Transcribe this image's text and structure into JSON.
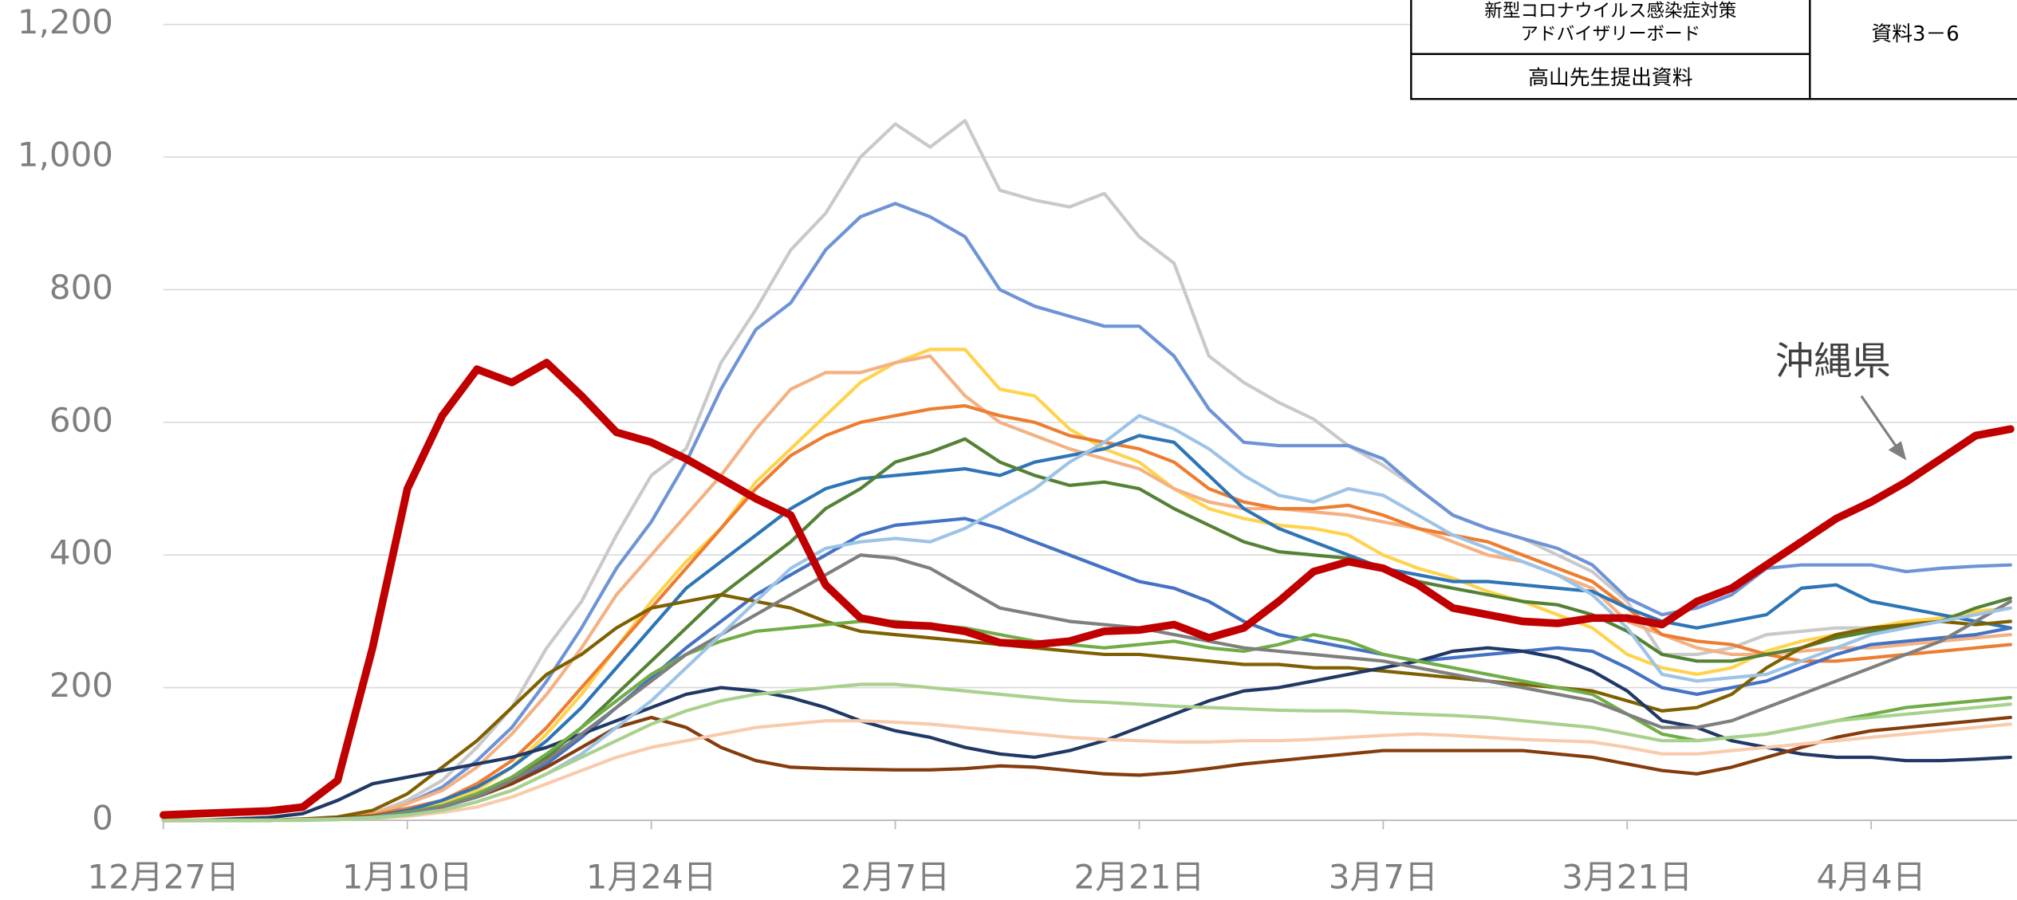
{
  "chart_data": {
    "type": "line",
    "categories": [
      "12月27日",
      null,
      null,
      null,
      null,
      null,
      null,
      "1月10日",
      null,
      null,
      null,
      null,
      null,
      null,
      "1月24日",
      null,
      null,
      null,
      null,
      null,
      null,
      "2月7日",
      null,
      null,
      null,
      null,
      null,
      null,
      "2月21日",
      null,
      null,
      null,
      null,
      null,
      null,
      "3月7日",
      null,
      null,
      null,
      null,
      null,
      null,
      "3月21日",
      null,
      null,
      null,
      null,
      null,
      null,
      "4月4日",
      null,
      null,
      null,
      null
    ],
    "ylim": [
      0,
      1200
    ],
    "yticks": [
      0,
      200,
      400,
      600,
      800,
      {
        "value": 1000,
        "label": "1,000"
      },
      {
        "value": 1200,
        "label": "1,200"
      }
    ],
    "grid": true,
    "annotation": {
      "text": "沖縄県",
      "series": 16
    },
    "series": [
      {
        "color": "#c9c9c9",
        "values": [
          0,
          0,
          0,
          0,
          2,
          5,
          10,
          30,
          60,
          110,
          170,
          260,
          330,
          430,
          520,
          560,
          690,
          770,
          860,
          915,
          1000,
          1050,
          1015,
          1055,
          950,
          935,
          925,
          945,
          880,
          840,
          700,
          660,
          630,
          605,
          565,
          535,
          500,
          460,
          440,
          425,
          400,
          375,
          330,
          250,
          250,
          260,
          280,
          285,
          290,
          290,
          295,
          300,
          310,
          320
        ]
      },
      {
        "color": "#6e93d6",
        "values": [
          0,
          0,
          0,
          0,
          1,
          3,
          8,
          25,
          50,
          90,
          140,
          210,
          290,
          380,
          450,
          540,
          650,
          740,
          780,
          860,
          910,
          930,
          910,
          880,
          800,
          775,
          760,
          745,
          745,
          700,
          620,
          570,
          565,
          565,
          565,
          545,
          500,
          460,
          440,
          425,
          410,
          385,
          335,
          310,
          320,
          340,
          380,
          385,
          385,
          385,
          375,
          380,
          383,
          385
        ]
      },
      {
        "color": "#ffd34d",
        "values": [
          0,
          0,
          0,
          0,
          0,
          2,
          5,
          12,
          25,
          45,
          80,
          130,
          190,
          260,
          330,
          390,
          440,
          510,
          560,
          610,
          660,
          690,
          710,
          710,
          650,
          640,
          590,
          560,
          540,
          500,
          470,
          455,
          445,
          440,
          430,
          400,
          380,
          365,
          345,
          330,
          310,
          290,
          250,
          230,
          220,
          230,
          255,
          270,
          280,
          290,
          300,
          305,
          315,
          320
        ]
      },
      {
        "color": "#f4b183",
        "values": [
          0,
          0,
          0,
          0,
          1,
          4,
          10,
          25,
          45,
          80,
          130,
          190,
          260,
          340,
          400,
          460,
          520,
          590,
          650,
          675,
          675,
          690,
          700,
          640,
          600,
          580,
          560,
          545,
          530,
          500,
          480,
          470,
          470,
          465,
          460,
          450,
          440,
          420,
          400,
          390,
          370,
          350,
          300,
          280,
          260,
          250,
          250,
          255,
          260,
          260,
          265,
          270,
          275,
          280
        ]
      },
      {
        "color": "#ed7d31",
        "values": [
          0,
          0,
          0,
          0,
          1,
          3,
          8,
          18,
          30,
          55,
          90,
          140,
          200,
          260,
          320,
          380,
          440,
          500,
          550,
          580,
          600,
          610,
          620,
          625,
          610,
          600,
          580,
          570,
          560,
          540,
          500,
          480,
          470,
          470,
          475,
          460,
          440,
          430,
          420,
          400,
          380,
          360,
          320,
          280,
          270,
          265,
          250,
          240,
          240,
          245,
          250,
          255,
          260,
          265
        ]
      },
      {
        "color": "#2e75b6",
        "values": [
          0,
          0,
          0,
          0,
          1,
          3,
          6,
          15,
          30,
          50,
          80,
          120,
          170,
          230,
          290,
          350,
          390,
          430,
          470,
          500,
          515,
          520,
          525,
          530,
          520,
          540,
          550,
          560,
          580,
          570,
          520,
          470,
          440,
          420,
          400,
          380,
          370,
          360,
          360,
          355,
          350,
          345,
          320,
          300,
          290,
          300,
          310,
          350,
          355,
          330,
          320,
          310,
          300,
          290
        ]
      },
      {
        "color": "#548235",
        "values": [
          0,
          0,
          0,
          0,
          1,
          3,
          6,
          12,
          22,
          38,
          60,
          95,
          140,
          190,
          240,
          290,
          340,
          380,
          420,
          470,
          500,
          540,
          555,
          575,
          540,
          520,
          505,
          510,
          500,
          470,
          445,
          420,
          405,
          400,
          395,
          380,
          360,
          350,
          340,
          330,
          325,
          310,
          285,
          250,
          240,
          240,
          250,
          260,
          275,
          285,
          295,
          300,
          320,
          335
        ]
      },
      {
        "color": "#4472c4",
        "values": [
          0,
          0,
          0,
          0,
          1,
          2,
          4,
          10,
          20,
          35,
          55,
          85,
          125,
          170,
          215,
          260,
          300,
          340,
          370,
          400,
          430,
          445,
          450,
          455,
          440,
          420,
          400,
          380,
          360,
          350,
          330,
          300,
          280,
          270,
          260,
          250,
          240,
          245,
          250,
          255,
          260,
          255,
          230,
          200,
          190,
          200,
          210,
          230,
          250,
          265,
          270,
          275,
          280,
          290
        ]
      },
      {
        "color": "#7f6000",
        "values": [
          0,
          0,
          0,
          0,
          2,
          5,
          15,
          40,
          80,
          120,
          170,
          220,
          250,
          290,
          320,
          330,
          340,
          330,
          320,
          300,
          285,
          280,
          275,
          270,
          265,
          260,
          255,
          250,
          250,
          245,
          240,
          235,
          235,
          230,
          230,
          225,
          220,
          215,
          210,
          205,
          200,
          195,
          180,
          165,
          170,
          190,
          230,
          260,
          280,
          290,
          295,
          300,
          295,
          300
        ]
      },
      {
        "color": "#203864",
        "values": [
          0,
          0,
          2,
          4,
          10,
          30,
          55,
          65,
          75,
          85,
          95,
          110,
          130,
          150,
          170,
          190,
          200,
          195,
          185,
          170,
          150,
          135,
          125,
          110,
          100,
          95,
          105,
          120,
          140,
          160,
          180,
          195,
          200,
          210,
          220,
          230,
          240,
          255,
          260,
          255,
          245,
          225,
          195,
          150,
          140,
          120,
          110,
          100,
          95,
          95,
          90,
          90,
          92,
          95
        ]
      },
      {
        "color": "#843c0c",
        "values": [
          0,
          0,
          0,
          0,
          1,
          3,
          6,
          12,
          22,
          35,
          55,
          80,
          110,
          140,
          155,
          140,
          110,
          90,
          80,
          78,
          77,
          76,
          76,
          78,
          82,
          80,
          75,
          70,
          68,
          72,
          78,
          85,
          90,
          95,
          100,
          105,
          105,
          105,
          105,
          105,
          100,
          95,
          85,
          75,
          70,
          80,
          95,
          110,
          125,
          135,
          140,
          145,
          150,
          155
        ]
      },
      {
        "color": "#70ad47",
        "values": [
          0,
          0,
          0,
          0,
          1,
          2,
          5,
          12,
          22,
          40,
          65,
          100,
          140,
          180,
          220,
          250,
          270,
          285,
          290,
          295,
          300,
          300,
          295,
          290,
          280,
          270,
          265,
          260,
          265,
          270,
          260,
          255,
          265,
          280,
          270,
          250,
          240,
          230,
          220,
          210,
          200,
          190,
          160,
          130,
          120,
          125,
          130,
          140,
          150,
          160,
          170,
          175,
          180,
          185
        ]
      },
      {
        "color": "#7f7f7f",
        "values": [
          0,
          0,
          0,
          0,
          1,
          2,
          4,
          10,
          20,
          35,
          60,
          90,
          130,
          170,
          210,
          250,
          280,
          310,
          340,
          370,
          400,
          395,
          380,
          350,
          320,
          310,
          300,
          295,
          290,
          280,
          270,
          260,
          255,
          250,
          245,
          240,
          230,
          220,
          210,
          200,
          190,
          180,
          160,
          140,
          140,
          150,
          170,
          190,
          210,
          230,
          250,
          270,
          300,
          330
        ]
      },
      {
        "color": "#9dc3e6",
        "values": [
          0,
          0,
          0,
          0,
          1,
          2,
          4,
          8,
          15,
          28,
          45,
          70,
          100,
          140,
          180,
          230,
          280,
          330,
          380,
          410,
          420,
          425,
          420,
          440,
          470,
          500,
          540,
          570,
          610,
          590,
          560,
          520,
          490,
          480,
          500,
          490,
          460,
          430,
          410,
          390,
          370,
          340,
          290,
          220,
          210,
          215,
          220,
          240,
          260,
          280,
          290,
          300,
          310,
          320
        ]
      },
      {
        "color": "#f8cbad",
        "values": [
          0,
          0,
          0,
          0,
          0,
          1,
          3,
          6,
          12,
          20,
          35,
          55,
          75,
          95,
          110,
          120,
          130,
          140,
          145,
          150,
          150,
          148,
          145,
          140,
          135,
          130,
          125,
          122,
          120,
          118,
          118,
          120,
          120,
          122,
          125,
          128,
          130,
          128,
          125,
          122,
          120,
          118,
          110,
          100,
          100,
          105,
          110,
          115,
          120,
          125,
          130,
          135,
          140,
          145
        ]
      },
      {
        "color": "#a9d18e",
        "values": [
          0,
          0,
          0,
          0,
          0,
          1,
          3,
          8,
          15,
          28,
          45,
          70,
          95,
          120,
          145,
          165,
          180,
          190,
          195,
          200,
          205,
          205,
          200,
          195,
          190,
          185,
          180,
          178,
          175,
          172,
          170,
          168,
          166,
          165,
          165,
          162,
          160,
          158,
          155,
          150,
          145,
          140,
          130,
          120,
          120,
          125,
          130,
          140,
          150,
          155,
          160,
          165,
          170,
          175
        ]
      },
      {
        "color": "#c00000",
        "values": [
          8,
          10,
          12,
          14,
          20,
          60,
          260,
          500,
          610,
          680,
          660,
          690,
          640,
          585,
          570,
          545,
          515,
          485,
          460,
          355,
          305,
          295,
          293,
          285,
          268,
          265,
          270,
          285,
          287,
          295,
          275,
          290,
          330,
          375,
          390,
          380,
          355,
          320,
          310,
          300,
          297,
          305,
          305,
          295,
          330,
          350,
          385,
          420,
          455,
          480,
          510,
          545,
          580,
          590
        ]
      }
    ]
  },
  "stamp": {
    "board": [
      "新型コロナウイルス感染症対策",
      "アドバイザリーボード"
    ],
    "code": "資料3－6",
    "presenter": "高山先生提出資料"
  }
}
